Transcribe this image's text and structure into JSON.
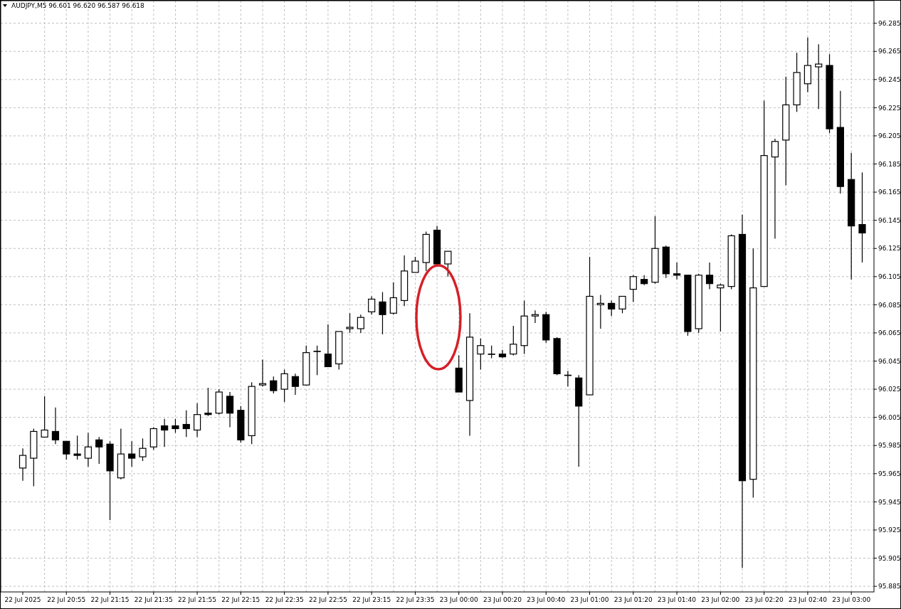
{
  "chart_data": {
    "type": "candlestick",
    "title": "AUDJPY,M5  96.601 96.620 96.587 96.618",
    "categories": [
      "22 Jul 2025",
      null,
      null,
      null,
      "22 Jul 20:55",
      null,
      null,
      null,
      "22 Jul 21:15",
      null,
      null,
      null,
      "22 Jul 21:35",
      null,
      null,
      null,
      "22 Jul 21:55",
      null,
      null,
      null,
      "22 Jul 22:15",
      null,
      null,
      null,
      "22 Jul 22:35",
      null,
      null,
      null,
      "22 Jul 22:55",
      null,
      null,
      null,
      "22 Jul 23:15",
      null,
      null,
      null,
      "22 Jul 23:35",
      null,
      null,
      null,
      "23 Jul 00:00",
      null,
      null,
      null,
      "23 Jul 00:20",
      null,
      null,
      null,
      "23 Jul 00:40",
      null,
      null,
      null,
      "23 Jul 01:00",
      null,
      null,
      null,
      "23 Jul 01:20",
      null,
      null,
      null,
      "23 Jul 01:40",
      null,
      null,
      null,
      "23 Jul 02:00",
      null,
      null,
      null,
      "23 Jul 02:20",
      null,
      null,
      null,
      "23 Jul 02:40",
      null,
      null,
      null,
      "23 Jul 03:00",
      null
    ],
    "ohlc": [
      [
        95.969,
        95.983,
        95.96,
        95.978
      ],
      [
        95.976,
        95.997,
        95.956,
        95.995
      ],
      [
        95.991,
        96.02,
        95.991,
        95.996
      ],
      [
        95.995,
        96.012,
        95.986,
        95.989
      ],
      [
        95.988,
        95.988,
        95.975,
        95.979
      ],
      [
        95.979,
        95.992,
        95.975,
        95.978
      ],
      [
        95.976,
        95.994,
        95.97,
        95.984
      ],
      [
        95.989,
        95.991,
        95.972,
        95.984
      ],
      [
        95.986,
        95.988,
        95.932,
        95.967
      ],
      [
        95.962,
        95.997,
        95.961,
        95.979
      ],
      [
        95.979,
        95.988,
        95.97,
        95.976
      ],
      [
        95.977,
        95.99,
        95.974,
        95.983
      ],
      [
        95.984,
        95.998,
        95.982,
        95.997
      ],
      [
        95.999,
        96.004,
        95.984,
        95.996
      ],
      [
        95.999,
        96.004,
        95.994,
        95.997
      ],
      [
        96.0,
        96.01,
        95.991,
        95.997
      ],
      [
        95.996,
        96.015,
        95.991,
        96.007
      ],
      [
        96.008,
        96.026,
        96.006,
        96.007
      ],
      [
        96.008,
        96.025,
        96.007,
        96.023
      ],
      [
        96.02,
        96.023,
        95.998,
        96.008
      ],
      [
        96.01,
        96.013,
        95.987,
        95.989
      ],
      [
        95.992,
        96.03,
        95.986,
        96.027
      ],
      [
        96.028,
        96.046,
        96.027,
        96.029
      ],
      [
        96.031,
        96.034,
        96.022,
        96.024
      ],
      [
        96.025,
        96.039,
        96.016,
        96.036
      ],
      [
        96.034,
        96.036,
        96.021,
        96.027
      ],
      [
        96.028,
        96.056,
        96.028,
        96.051
      ],
      [
        96.052,
        96.056,
        96.035,
        96.052
      ],
      [
        96.05,
        96.071,
        96.041,
        96.041
      ],
      [
        96.043,
        96.066,
        96.039,
        96.066
      ],
      [
        96.068,
        96.079,
        96.065,
        96.069
      ],
      [
        96.068,
        96.078,
        96.065,
        96.076
      ],
      [
        96.08,
        96.091,
        96.078,
        96.089
      ],
      [
        96.087,
        96.094,
        96.064,
        96.078
      ],
      [
        96.079,
        96.101,
        96.078,
        96.09
      ],
      [
        96.088,
        96.12,
        96.084,
        96.109
      ],
      [
        96.108,
        96.119,
        96.108,
        96.116
      ],
      [
        96.115,
        96.137,
        96.109,
        96.135
      ],
      [
        96.138,
        96.141,
        96.113,
        96.114
      ],
      [
        96.114,
        96.123,
        96.105,
        96.123
      ],
      [
        96.04,
        96.049,
        96.023,
        96.023
      ],
      [
        96.017,
        96.079,
        95.992,
        96.062
      ],
      [
        96.05,
        96.061,
        96.039,
        96.056
      ],
      [
        96.05,
        96.056,
        96.047,
        96.05
      ],
      [
        96.05,
        96.053,
        96.047,
        96.048
      ],
      [
        96.05,
        96.07,
        96.049,
        96.057
      ],
      [
        96.056,
        96.088,
        96.05,
        96.077
      ],
      [
        96.077,
        96.081,
        96.072,
        96.078
      ],
      [
        96.078,
        96.08,
        96.058,
        96.06
      ],
      [
        96.061,
        96.062,
        96.035,
        96.036
      ],
      [
        96.035,
        96.038,
        96.027,
        96.035
      ],
      [
        96.033,
        96.035,
        95.97,
        96.013
      ],
      [
        96.021,
        96.119,
        96.021,
        96.091
      ],
      [
        96.085,
        96.092,
        96.068,
        96.086
      ],
      [
        96.086,
        96.088,
        96.077,
        96.082
      ],
      [
        96.082,
        96.091,
        96.079,
        96.091
      ],
      [
        96.096,
        96.106,
        96.087,
        96.105
      ],
      [
        96.103,
        96.106,
        96.099,
        96.1
      ],
      [
        96.101,
        96.148,
        96.1,
        96.125
      ],
      [
        96.126,
        96.127,
        96.104,
        96.107
      ],
      [
        96.107,
        96.115,
        96.103,
        96.106
      ],
      [
        96.106,
        96.106,
        96.063,
        96.066
      ],
      [
        96.068,
        96.107,
        96.065,
        96.106
      ],
      [
        96.106,
        96.115,
        96.096,
        96.1
      ],
      [
        96.097,
        96.1,
        96.066,
        96.099
      ],
      [
        96.098,
        96.135,
        96.096,
        96.134
      ],
      [
        96.135,
        96.149,
        95.898,
        95.96
      ],
      [
        95.961,
        96.125,
        95.948,
        96.097
      ],
      [
        96.098,
        96.23,
        96.098,
        96.191
      ],
      [
        96.19,
        96.203,
        96.132,
        96.201
      ],
      [
        96.202,
        96.247,
        96.17,
        96.227
      ],
      [
        96.227,
        96.264,
        96.222,
        96.25
      ],
      [
        96.242,
        96.275,
        96.236,
        96.255
      ],
      [
        96.254,
        96.27,
        96.224,
        96.256
      ],
      [
        96.255,
        96.263,
        96.207,
        96.21
      ],
      [
        96.211,
        96.237,
        96.164,
        96.169
      ],
      [
        96.174,
        96.193,
        96.103,
        96.141
      ],
      [
        96.142,
        96.179,
        96.115,
        96.136
      ]
    ],
    "ylim": [
      95.881,
      96.301
    ],
    "yticks": [
      95.885,
      95.905,
      95.925,
      95.945,
      95.965,
      95.985,
      96.005,
      96.025,
      96.045,
      96.065,
      96.085,
      96.105,
      96.125,
      96.145,
      96.165,
      96.185,
      96.205,
      96.225,
      96.245,
      96.265,
      96.285
    ],
    "grid": true
  }
}
